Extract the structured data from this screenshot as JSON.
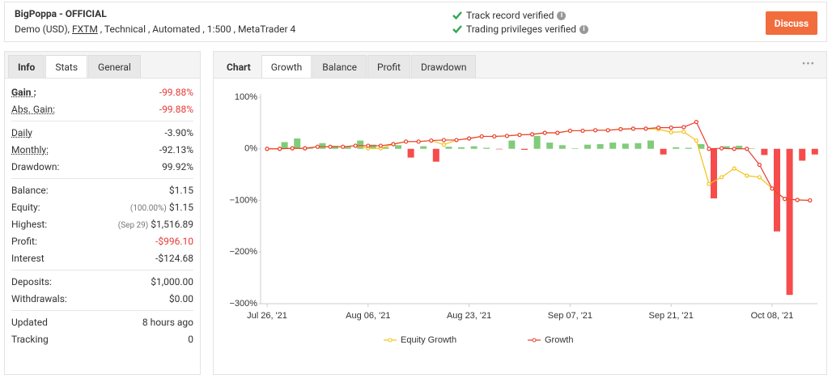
{
  "header": {
    "title": "BigPoppa - OFFICIAL",
    "details": [
      "Demo (USD), ",
      "FXTM",
      " , Technical , Automated , 1:500 , MetaTrader 4"
    ],
    "verifications": [
      "Track record verified",
      "Trading privileges verified"
    ],
    "button": "Discuss"
  },
  "left_tabs": {
    "items": [
      "Info",
      "Stats",
      "General"
    ],
    "active": 1
  },
  "stats": [
    [
      {
        "label": "Gain :",
        "value": "-99.88%",
        "color": "#e53935",
        "underline": true,
        "bold": true
      },
      {
        "label": "Abs. Gain:",
        "value": "-99.88%",
        "color": "#e53935",
        "underline": true
      }
    ],
    [
      {
        "label": "Daily",
        "value": "-3.90%",
        "underline": true
      },
      {
        "label": "Monthly:",
        "value": "-92.13%",
        "underline": true
      },
      {
        "label": "Drawdown:",
        "value": "99.92%"
      }
    ],
    [
      {
        "label": "Balance:",
        "value": "$1.15"
      },
      {
        "label": "Equity:",
        "note": "(100.00%)",
        "value": "$1.15"
      },
      {
        "label": "Highest:",
        "note": "(Sep 29)",
        "value": "$1,516.89"
      },
      {
        "label": "Profit:",
        "value": "-$996.10",
        "color": "#e53935"
      },
      {
        "label": "Interest",
        "value": "-$124.68"
      }
    ],
    [
      {
        "label": "Deposits:",
        "value": "$1,000.00"
      },
      {
        "label": "Withdrawals:",
        "value": "$0.00"
      }
    ],
    [
      {
        "label": "Updated",
        "value": "8 hours ago"
      },
      {
        "label": "Tracking",
        "value": "0"
      }
    ]
  ],
  "chart_tabs": {
    "items": [
      "Chart",
      "Growth",
      "Balance",
      "Profit",
      "Drawdown"
    ],
    "active": 1
  },
  "chart_data": {
    "type": "line",
    "categories": [
      "Jul 26, '21",
      null,
      null,
      null,
      null,
      null,
      null,
      null,
      "Aug 06, '21",
      null,
      null,
      null,
      null,
      null,
      null,
      null,
      "Aug 23, '21",
      null,
      null,
      null,
      null,
      null,
      null,
      null,
      "Sep 07, '21",
      null,
      null,
      null,
      null,
      null,
      null,
      null,
      "Sep 21, '21",
      null,
      null,
      null,
      null,
      null,
      null,
      null,
      "Oct 08, '21",
      null,
      null,
      null
    ],
    "series": [
      {
        "name": "Equity Growth",
        "color": "#f0c419",
        "values": [
          0,
          0,
          1,
          1,
          4,
          4,
          4,
          6,
          1,
          1,
          9,
          14,
          14,
          16,
          8,
          17,
          20,
          24,
          24,
          25,
          27,
          28,
          31,
          31,
          35,
          35,
          36,
          36,
          38,
          39,
          39,
          38,
          32,
          33,
          16,
          -68,
          -55,
          -38,
          -52,
          -55,
          -77,
          -97,
          -99,
          -99.88
        ]
      },
      {
        "name": "Growth",
        "color": "#ea3d2f",
        "values": [
          0,
          0,
          1,
          1,
          4,
          4,
          4,
          6,
          6,
          6,
          9,
          14,
          14,
          16,
          17,
          17,
          20,
          24,
          24,
          25,
          27,
          28,
          31,
          31,
          35,
          35,
          36,
          36,
          38,
          39,
          39,
          41,
          41,
          42,
          52,
          0,
          1,
          0,
          0,
          -31,
          -77,
          -97,
          -99,
          -99.88
        ]
      }
    ],
    "bars": {
      "positive_color": "#80cc7a",
      "negative_color": "#f64c4c",
      "values": [
        0,
        13,
        20,
        2,
        11,
        6,
        5,
        16,
        8,
        3,
        7,
        -17,
        5,
        -25,
        4,
        3,
        5,
        2,
        -1,
        16,
        -2,
        25,
        12,
        7,
        1,
        8,
        9,
        12,
        10,
        11,
        16,
        -11,
        3,
        2,
        9,
        -96,
        5,
        6,
        1,
        -12,
        -160,
        -283,
        -23,
        -11
      ]
    },
    "ylim": [
      -300,
      100
    ],
    "yticks": [
      {
        "value": 100,
        "label": "100%"
      },
      {
        "value": 0,
        "label": "0%"
      },
      {
        "value": -100,
        "label": "−100%"
      },
      {
        "value": -200,
        "label": "−200%"
      },
      {
        "value": -300,
        "label": "−300%"
      }
    ],
    "grid": false
  }
}
